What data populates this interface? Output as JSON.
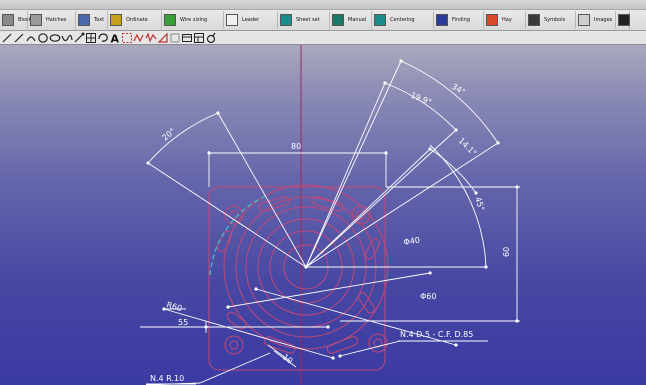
{
  "toolbar": {
    "buttons": [
      {
        "label": "Blocks",
        "icon": "blocks-icon",
        "color": "#8a8a8a"
      },
      {
        "label": "Hatches",
        "icon": "hatch-icon",
        "color": "#9a9a9a"
      },
      {
        "label": "Text",
        "icon": "text-tool-icon",
        "color": "#4a6ab0"
      },
      {
        "label": "Ordinate",
        "icon": "ordinate-icon",
        "color": "#c8a020"
      },
      {
        "label": "Wire sizing",
        "icon": "wire-icon",
        "color": "#38a038"
      },
      {
        "label": "Leader",
        "icon": "leader-icon",
        "color": "#f0f0f0"
      },
      {
        "label": "Sheet set",
        "icon": "sheet-set-icon",
        "color": "#1a8c8c"
      },
      {
        "label": "Manual",
        "icon": "manual-icon",
        "color": "#1a7a6a"
      },
      {
        "label": "Centering",
        "icon": "centering-icon",
        "color": "#1a8c8c"
      },
      {
        "label": "Finding",
        "icon": "finding-icon",
        "color": "#2a3a9a"
      },
      {
        "label": "Hay",
        "icon": "color-grid-icon",
        "color": "#d84a2a"
      },
      {
        "label": "Symbols",
        "icon": "symbol-s-icon",
        "color": "#3a3a3a"
      },
      {
        "label": "Images",
        "icon": "image-icon",
        "color": "#cfcfcf"
      },
      {
        "label": "",
        "icon": "camera-icon",
        "color": "#222222"
      }
    ]
  },
  "draw_tools": [
    {
      "name": "line-tool-icon",
      "glyph": "diag"
    },
    {
      "name": "polyline-tool-icon",
      "glyph": "diag"
    },
    {
      "name": "arc-tool-icon",
      "glyph": "arc"
    },
    {
      "name": "circle-tool-icon",
      "glyph": "circle"
    },
    {
      "name": "ellipse-tool-icon",
      "glyph": "ellipse"
    },
    {
      "name": "curve-tool-icon",
      "glyph": "curve"
    },
    {
      "name": "dimension-tool-icon",
      "glyph": "diag2"
    },
    {
      "name": "grid-tool-icon",
      "glyph": "grid"
    },
    {
      "name": "lasso-tool-icon",
      "glyph": "lasso"
    },
    {
      "name": "text-tool-icon",
      "glyph": "A"
    },
    {
      "name": "select-region-icon",
      "glyph": "dash"
    },
    {
      "name": "pattern-tool-icon",
      "glyph": "zigzag"
    },
    {
      "name": "transform-tool-icon",
      "glyph": "zigzag2"
    },
    {
      "name": "mirror-tool-icon",
      "glyph": "mirror"
    },
    {
      "name": "rectangle-tool-icon",
      "glyph": "rect"
    },
    {
      "name": "frame-tool-icon",
      "glyph": "frame"
    },
    {
      "name": "table-tool-icon",
      "glyph": "table"
    },
    {
      "name": "rotate-tool-icon",
      "glyph": "rotate"
    }
  ],
  "colors": {
    "dimension": "#ffffff",
    "part_outline": "#c04878",
    "center_line": "#9a2a5a",
    "cyan_arc": "#40c0c0"
  },
  "drawing": {
    "dimensions": {
      "width_80": "80",
      "height_60": "60",
      "angle_20": "20°",
      "angle_34": "34°",
      "angle_19_9": "19.9°",
      "angle_14_1": "14.1°",
      "angle_45": "45°",
      "diameter_40": "Φ40",
      "diameter_60": "Φ60",
      "radius_60": "R60",
      "offset_55": "55",
      "slot_10": "10"
    },
    "notes": {
      "holes": "N.4 D.5 - C.F. D.85",
      "slots": "N.4 R.10"
    }
  }
}
